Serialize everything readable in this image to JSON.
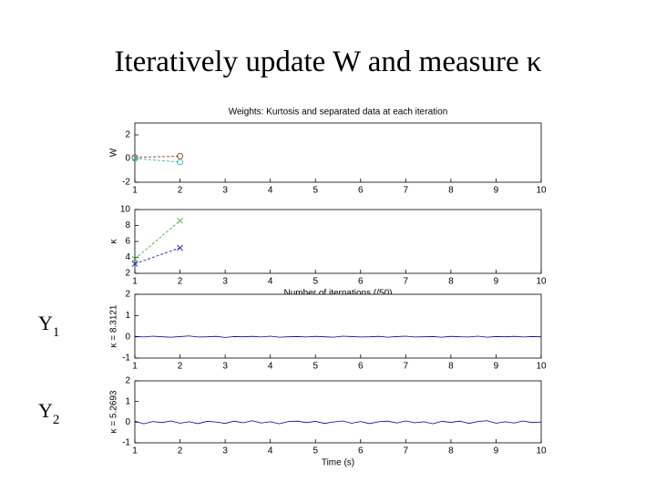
{
  "slide": {
    "title": "Iteratively update W and measure κ",
    "labels": [
      {
        "main": "Y",
        "sub": "1"
      },
      {
        "main": "Y",
        "sub": "2"
      }
    ]
  },
  "chart_data": [
    {
      "type": "line",
      "title": "Weights: Kurtosis and separated data at each iteration",
      "ylabel": "W",
      "xlim": [
        1,
        10
      ],
      "xticks": [
        1,
        2,
        3,
        4,
        5,
        6,
        7,
        8,
        9,
        10
      ],
      "ylim": [
        -2,
        3
      ],
      "yticks": [
        -2,
        0,
        2
      ],
      "series": [
        {
          "color": "#a0522d",
          "marker": "o",
          "dashed": true,
          "x": [
            1,
            2
          ],
          "values": [
            0.1,
            0.2
          ]
        },
        {
          "color": "#40c0c0",
          "marker": "o",
          "dashed": true,
          "x": [
            1,
            2
          ],
          "values": [
            0,
            -0.3
          ]
        }
      ]
    },
    {
      "type": "line",
      "ylabel": "κ",
      "xlabel": "Number of iternations (/50)",
      "xlim": [
        1,
        10
      ],
      "xticks": [
        1,
        2,
        3,
        4,
        5,
        6,
        7,
        8,
        9,
        10
      ],
      "ylim": [
        2,
        10
      ],
      "yticks": [
        2,
        4,
        6,
        8,
        10
      ],
      "series": [
        {
          "color": "#55bb55",
          "marker": "x",
          "dashed": true,
          "x": [
            1,
            2
          ],
          "values": [
            3.8,
            8.6
          ]
        },
        {
          "color": "#3333cc",
          "marker": "x",
          "dashed": true,
          "x": [
            1,
            2
          ],
          "values": [
            3.2,
            5.2
          ]
        }
      ]
    },
    {
      "type": "line",
      "ylabel": "κ = 8.3121",
      "xlim": [
        1,
        10
      ],
      "xticks": [
        1,
        2,
        3,
        4,
        5,
        6,
        7,
        8,
        9,
        10
      ],
      "ylim": [
        -1,
        2
      ],
      "yticks": [
        -1,
        0,
        1,
        2
      ],
      "series": [
        {
          "color": "#00008b",
          "x": [
            1,
            1.2,
            1.4,
            1.6,
            1.8,
            2,
            2.2,
            2.4,
            2.6,
            2.8,
            3,
            3.2,
            3.4,
            3.6,
            3.8,
            4,
            4.2,
            4.4,
            4.6,
            4.8,
            5,
            5.2,
            5.4,
            5.6,
            5.8,
            6,
            6.2,
            6.4,
            6.6,
            6.8,
            7,
            7.2,
            7.4,
            7.6,
            7.8,
            8,
            8.2,
            8.4,
            8.6,
            8.8,
            9,
            9.2,
            9.4,
            9.6,
            9.8,
            10
          ],
          "values": [
            0.02,
            -0.01,
            0.03,
            0,
            -0.02,
            0.01,
            0.04,
            -0.01,
            0,
            0.02,
            -0.03,
            0.01,
            0,
            0.02,
            -0.01,
            0.03,
            -0.02,
            0,
            0.01,
            -0.01,
            0.02,
            0,
            -0.02,
            0.03,
            0.01,
            -0.01,
            0,
            0.02,
            -0.02,
            0.01,
            0.03,
            -0.01,
            0,
            0.01,
            -0.02,
            0.02,
            0,
            -0.01,
            0.03,
            -0.02,
            0.01,
            0,
            0.02,
            -0.01,
            0.01,
            0
          ]
        }
      ]
    },
    {
      "type": "line",
      "ylabel": "κ = 5.2693",
      "xlabel": "Time (s)",
      "xlim": [
        1,
        10
      ],
      "xticks": [
        1,
        2,
        3,
        4,
        5,
        6,
        7,
        8,
        9,
        10
      ],
      "ylim": [
        -1,
        2
      ],
      "yticks": [
        -1,
        0,
        1,
        2
      ],
      "series": [
        {
          "color": "#00008b",
          "x": [
            1,
            1.2,
            1.4,
            1.6,
            1.8,
            2,
            2.2,
            2.4,
            2.6,
            2.8,
            3,
            3.2,
            3.4,
            3.6,
            3.8,
            4,
            4.2,
            4.4,
            4.6,
            4.8,
            5,
            5.2,
            5.4,
            5.6,
            5.8,
            6,
            6.2,
            6.4,
            6.6,
            6.8,
            7,
            7.2,
            7.4,
            7.6,
            7.8,
            8,
            8.2,
            8.4,
            8.6,
            8.8,
            9,
            9.2,
            9.4,
            9.6,
            9.8,
            10
          ],
          "values": [
            0.05,
            -0.08,
            0.03,
            -0.02,
            0.06,
            -0.05,
            0.02,
            -0.07,
            0.04,
            0.01,
            -0.06,
            0.05,
            -0.03,
            0.07,
            -0.04,
            0.02,
            -0.08,
            0.03,
            0.05,
            -0.02,
            0.04,
            -0.06,
            0.01,
            0.06,
            -0.05,
            0.03,
            -0.07,
            0.02,
            0.05,
            -0.04,
            0.06,
            -0.03,
            0.02,
            -0.08,
            0.04,
            -0.01,
            0.05,
            -0.06,
            0.03,
            0.07,
            -0.05,
            0.02,
            -0.04,
            0.06,
            -0.02,
            0.01
          ]
        }
      ]
    }
  ]
}
